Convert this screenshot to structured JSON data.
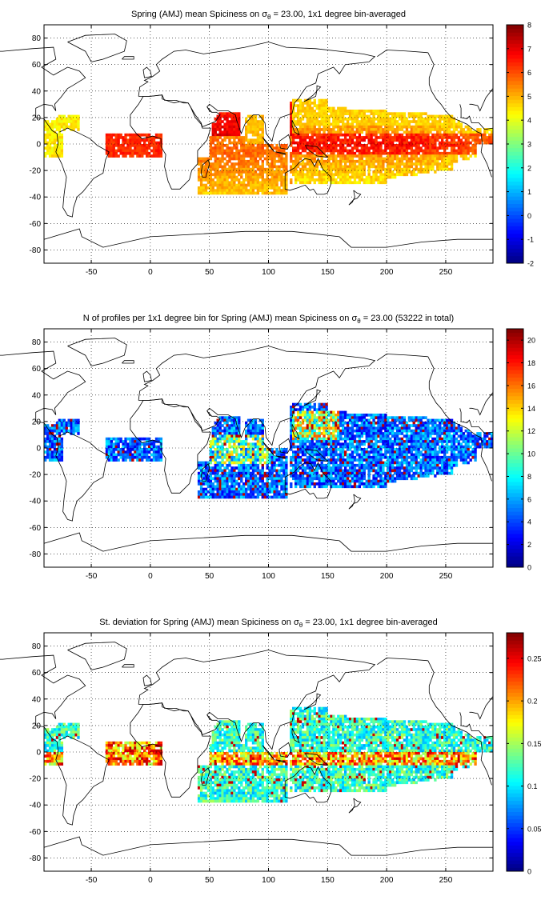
{
  "chart_data": [
    {
      "type": "heatmap",
      "title_pre": "Spring (AMJ) mean Spiciness on ",
      "title_sym": "σ",
      "title_sub": "θ",
      "title_post": " = 23.00, 1x1 degree bin-averaged",
      "xlim": [
        -90,
        290
      ],
      "ylim": [
        -90,
        90
      ],
      "xticks": [
        -50,
        0,
        50,
        100,
        150,
        200,
        250
      ],
      "xtick_labels": [
        "-50",
        "0",
        "50",
        "100",
        "150",
        "200",
        "250"
      ],
      "yticks": [
        80,
        60,
        40,
        20,
        0,
        -20,
        -40,
        -60,
        -80
      ],
      "ytick_labels": [
        "80",
        "60",
        "40",
        "20",
        "0",
        "-20",
        "-40",
        "-60",
        "-80"
      ],
      "grid": true,
      "colormap": "jet",
      "colorbar": {
        "range": [
          -2,
          8
        ],
        "ticks": [
          8,
          7,
          6,
          5,
          4,
          3,
          2,
          1,
          0,
          -1,
          -2
        ],
        "tick_labels": [
          "8",
          "7",
          "6",
          "5",
          "4",
          "3",
          "2",
          "1",
          "0",
          "-1",
          "-2"
        ]
      },
      "field": "spiciness"
    },
    {
      "type": "heatmap",
      "title_pre": "N of profiles per 1x1 degree bin for Spring (AMJ) mean Spiciness on ",
      "title_sym": "σ",
      "title_sub": "θ",
      "title_post": " = 23.00 (53222 in total)",
      "xlim": [
        -90,
        290
      ],
      "ylim": [
        -90,
        90
      ],
      "xticks": [
        -50,
        0,
        50,
        100,
        150,
        200,
        250
      ],
      "xtick_labels": [
        "-50",
        "0",
        "50",
        "100",
        "150",
        "200",
        "250"
      ],
      "yticks": [
        80,
        60,
        40,
        20,
        0,
        -20,
        -40,
        -60,
        -80
      ],
      "ytick_labels": [
        "80",
        "60",
        "40",
        "20",
        "0",
        "-20",
        "-40",
        "-60",
        "-80"
      ],
      "grid": true,
      "colormap": "jet",
      "colorbar": {
        "range": [
          0,
          21
        ],
        "ticks": [
          20,
          18,
          16,
          14,
          12,
          10,
          8,
          6,
          4,
          2,
          0
        ],
        "tick_labels": [
          "20",
          "18",
          "16",
          "14",
          "12",
          "10",
          "8",
          "6",
          "4",
          "2",
          "0"
        ]
      },
      "field": "count"
    },
    {
      "type": "heatmap",
      "title_pre": "St. deviation for Spring (AMJ) mean Spiciness on ",
      "title_sym": "σ",
      "title_sub": "θ",
      "title_post": " = 23.00, 1x1 degree bin-averaged",
      "xlim": [
        -90,
        290
      ],
      "ylim": [
        -90,
        90
      ],
      "xticks": [
        -50,
        0,
        50,
        100,
        150,
        200,
        250
      ],
      "xtick_labels": [
        "-50",
        "0",
        "50",
        "100",
        "150",
        "200",
        "250"
      ],
      "yticks": [
        80,
        60,
        40,
        20,
        0,
        -20,
        -40,
        -60,
        -80
      ],
      "ytick_labels": [
        "80",
        "60",
        "40",
        "20",
        "0",
        "-20",
        "-40",
        "-60",
        "-80"
      ],
      "grid": true,
      "colormap": "jet",
      "colorbar": {
        "range": [
          0,
          0.28
        ],
        "ticks": [
          0.25,
          0.2,
          0.15,
          0.1,
          0.05,
          0
        ],
        "tick_labels": [
          "0.25",
          "0.2",
          "0.15",
          "0.1",
          "0.05",
          "0"
        ]
      },
      "field": "stdev"
    }
  ]
}
